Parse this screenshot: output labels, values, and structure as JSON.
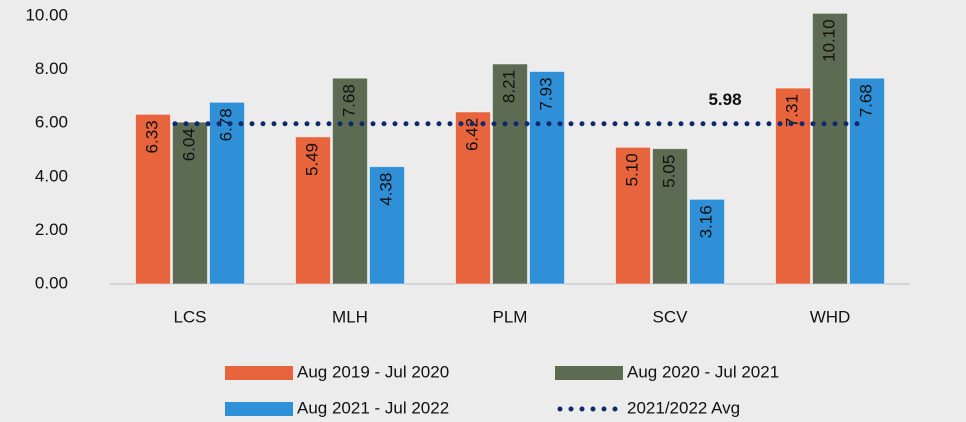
{
  "chart_data": {
    "type": "bar",
    "categories": [
      "LCS",
      "MLH",
      "PLM",
      "SCV",
      "WHD"
    ],
    "series": [
      {
        "name": "Aug 2019 - Jul 2020",
        "color": "#e8643c",
        "values": [
          6.33,
          5.49,
          6.42,
          5.1,
          7.31
        ],
        "value_labels": [
          "6.33",
          "5.49",
          "6.42",
          "5.10",
          "7.31"
        ]
      },
      {
        "name": "Aug 2020 - Jul 2021",
        "color": "#5d6b52",
        "values": [
          6.04,
          7.68,
          8.21,
          5.05,
          10.1
        ],
        "value_labels": [
          "6.04",
          "7.68",
          "8.21",
          "5.05",
          "10.10"
        ]
      },
      {
        "name": "Aug 2021 - Jul 2022",
        "color": "#2f90d8",
        "values": [
          6.78,
          4.38,
          7.93,
          3.16,
          7.68
        ],
        "value_labels": [
          "6.78",
          "4.38",
          "7.93",
          "3.16",
          "7.68"
        ]
      }
    ],
    "average": {
      "name": "2021/2022 Avg",
      "value": 5.98,
      "color": "#0d2a6b"
    },
    "ylim": [
      0,
      10.6
    ],
    "yticks": [
      {
        "value": 0,
        "label": "0.00"
      },
      {
        "value": 2,
        "label": "2.00"
      },
      {
        "value": 4,
        "label": "4.00"
      },
      {
        "value": 6,
        "label": "6.00"
      },
      {
        "value": 8,
        "label": "8.00"
      },
      {
        "value": 10,
        "label": "10.00"
      }
    ]
  }
}
